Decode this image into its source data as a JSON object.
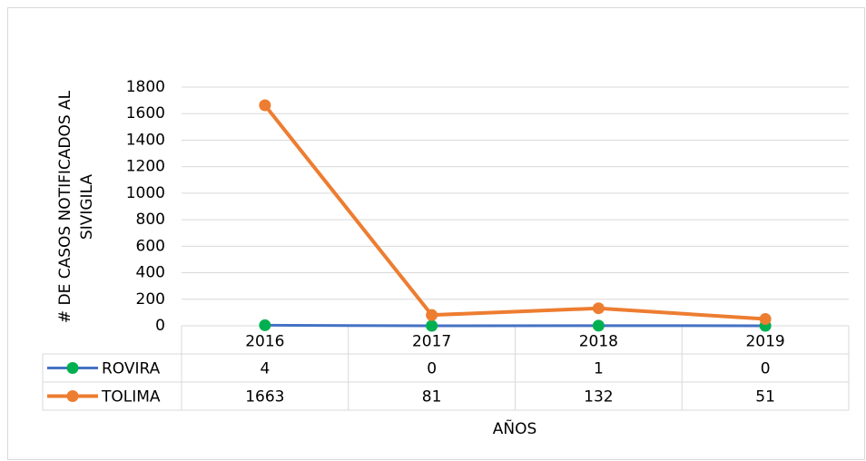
{
  "chart_data": {
    "type": "line",
    "y_label": [
      "# DE CASOS NOTIFICADOS AL",
      "SIVIGILA"
    ],
    "x_label": "AÑOS",
    "categories": [
      "2016",
      "2017",
      "2018",
      "2019"
    ],
    "series": [
      {
        "name": "ROVIRA",
        "color": "#4472c4",
        "marker_color": "#00b050",
        "values": [
          4,
          0,
          1,
          0
        ]
      },
      {
        "name": "TOLIMA",
        "color": "#ed7d31",
        "marker_color": "#ed7d31",
        "values": [
          1663,
          81,
          132,
          51
        ]
      }
    ],
    "ylim": [
      0,
      1800
    ],
    "yticks": [
      0,
      200,
      400,
      600,
      800,
      1000,
      1200,
      1400,
      1600,
      1800
    ],
    "grid": true,
    "data_table": true
  }
}
